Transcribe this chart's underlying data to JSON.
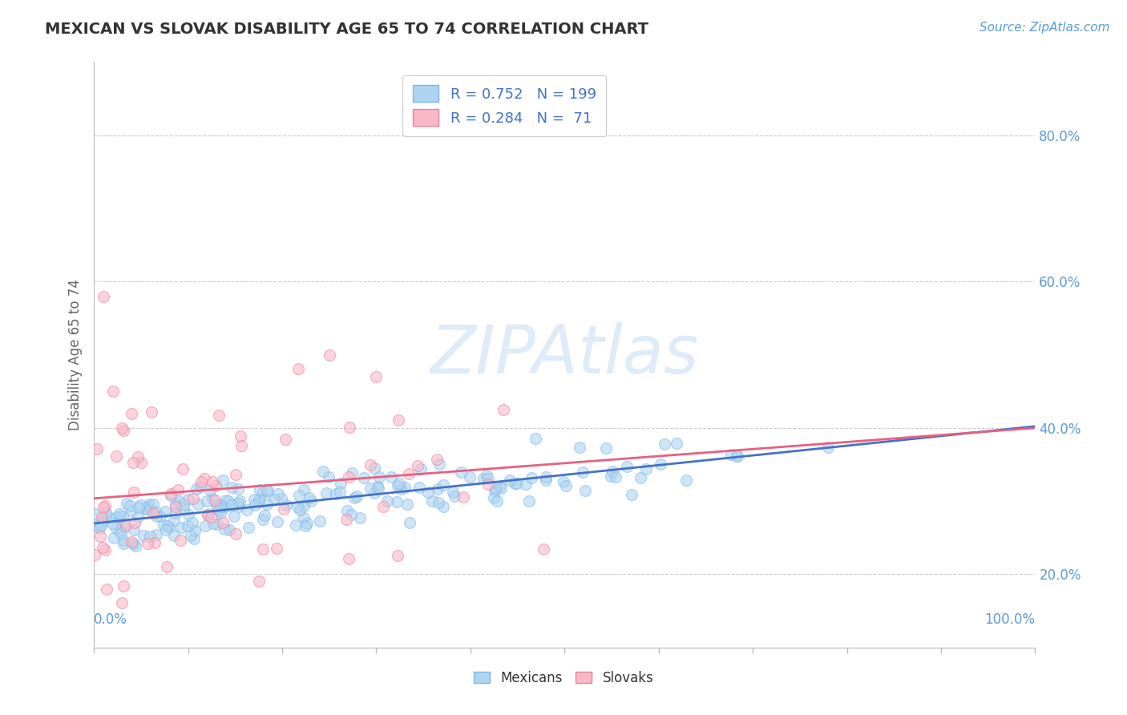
{
  "title": "MEXICAN VS SLOVAK DISABILITY AGE 65 TO 74 CORRELATION CHART",
  "ylabel": "Disability Age 65 to 74",
  "source_text": "Source: ZipAtlas.com",
  "watermark": "ZIPAtlas",
  "legend_r1": "R = 0.752",
  "legend_n1": "N = 199",
  "legend_r2": "R = 0.284",
  "legend_n2": "N =  71",
  "mexican_color": "#ADD4F0",
  "slovak_color": "#F9B8C8",
  "mexican_edge_color": "#7EB6E8",
  "slovak_edge_color": "#F08098",
  "mexican_line_color": "#4472C4",
  "slovak_line_color": "#E86080",
  "background_color": "#FFFFFF",
  "grid_color": "#CCCCCC",
  "yticks": [
    0.2,
    0.4,
    0.6,
    0.8
  ],
  "ytick_labels": [
    "20.0%",
    "40.0%",
    "60.0%",
    "80.0%"
  ],
  "xlim": [
    0.0,
    1.0
  ],
  "ylim": [
    0.1,
    0.9
  ],
  "title_fontsize": 14,
  "source_fontsize": 11,
  "ylabel_fontsize": 12,
  "ytick_fontsize": 12,
  "legend_fontsize": 13,
  "watermark_fontsize": 60,
  "scatter_size": 100,
  "scatter_alpha": 0.6,
  "line_linewidth": 2.0
}
